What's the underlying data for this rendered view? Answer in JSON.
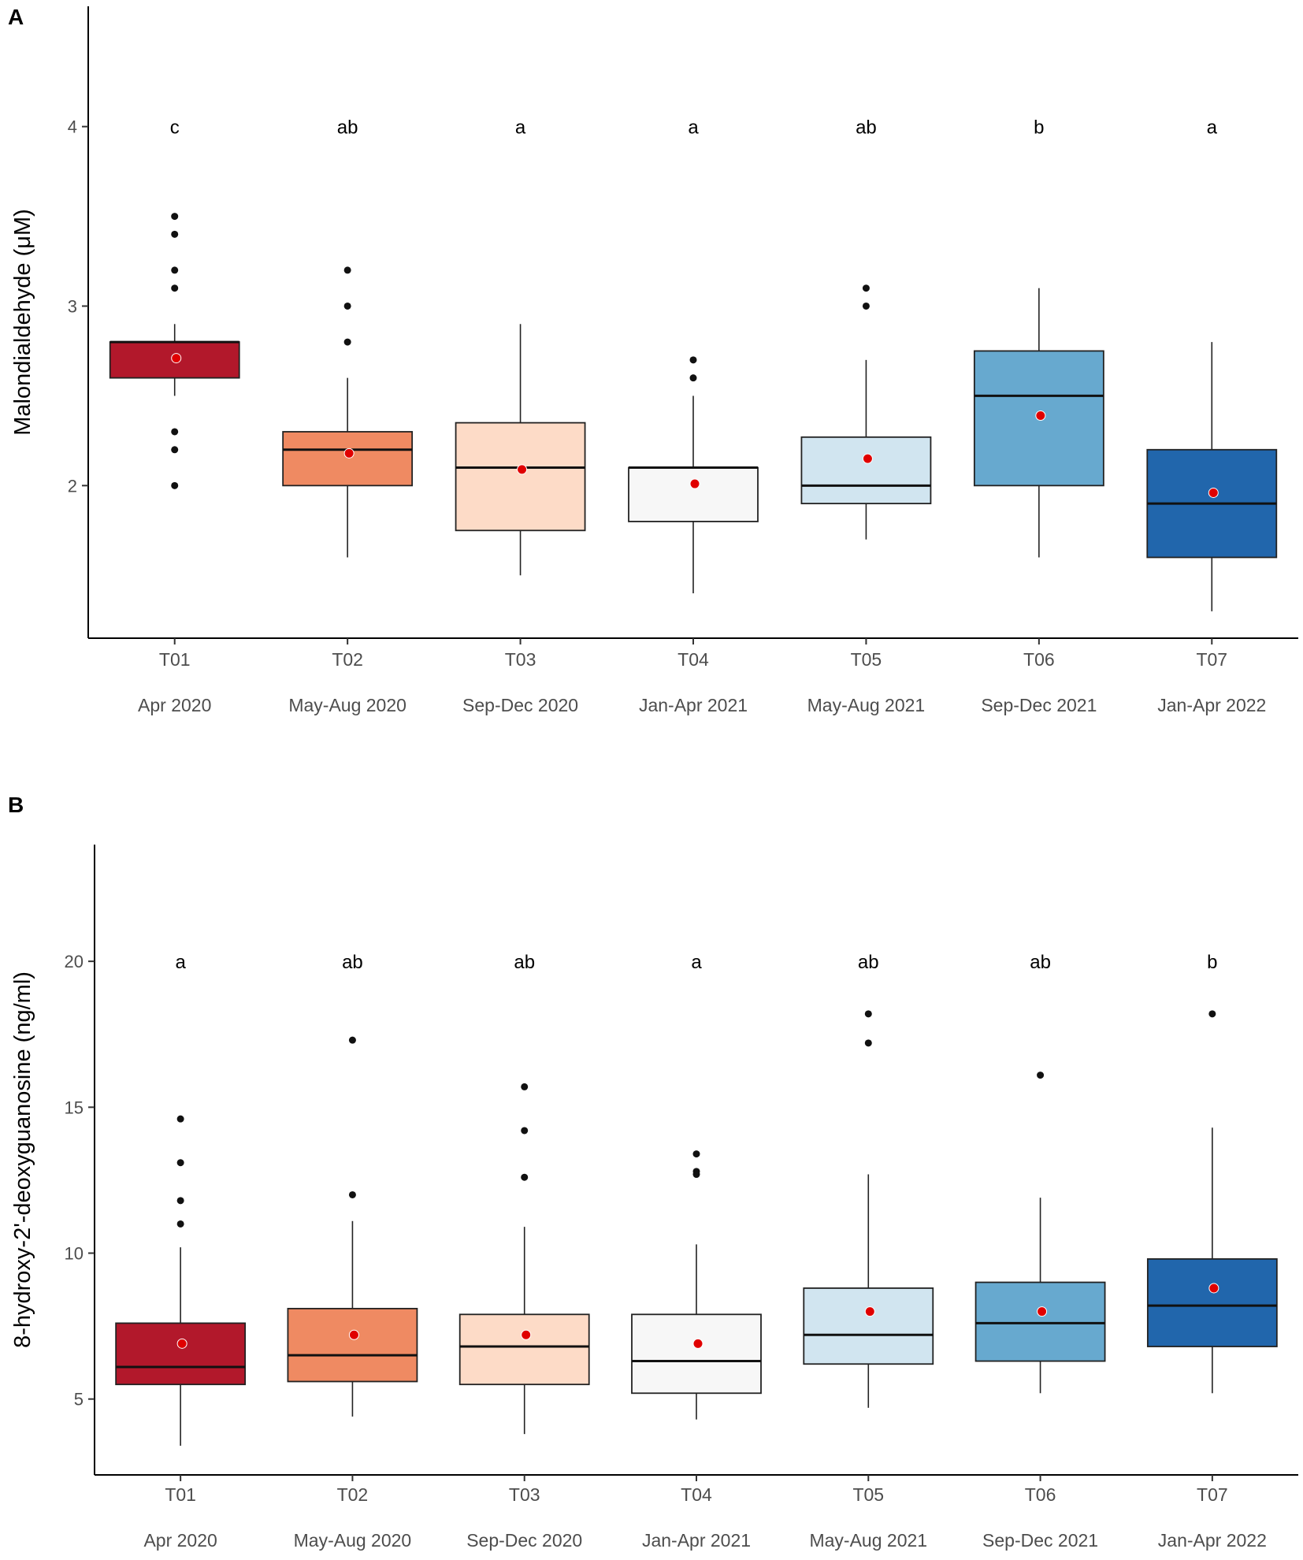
{
  "colors": [
    "#b2182b",
    "#ef8a62",
    "#fddbc7",
    "#f7f7f7",
    "#d1e5f0",
    "#67a9cf",
    "#2166ac"
  ],
  "mean_color": "#e00000",
  "chart_data": [
    {
      "panel": "A",
      "type": "box",
      "ylabel": "Malondialdehyde (μM)",
      "ylim": [
        1.15,
        4.67
      ],
      "yticks": [
        2,
        3,
        4
      ],
      "categories": [
        "T01",
        "T02",
        "T03",
        "T04",
        "T05",
        "T06",
        "T07"
      ],
      "periods": [
        "Apr 2020",
        "May-Aug 2020",
        "Sep-Dec 2020",
        "Jan-Apr 2021",
        "May-Aug 2021",
        "Sep-Dec 2021",
        "Jan-Apr 2022"
      ],
      "letters": [
        "c",
        "ab",
        "a",
        "a",
        "ab",
        "b",
        "a"
      ],
      "letter_y": 4,
      "boxes": [
        {
          "q1": 2.6,
          "median": 2.8,
          "q3": 2.8,
          "whisker_low": 2.5,
          "whisker_high": 2.9,
          "mean": 2.71,
          "outliers": [
            3.5,
            3.4,
            3.2,
            3.1,
            2.3,
            2.2,
            2.0
          ]
        },
        {
          "q1": 2.0,
          "median": 2.2,
          "q3": 2.3,
          "whisker_low": 1.6,
          "whisker_high": 2.6,
          "mean": 2.18,
          "outliers": [
            3.2,
            3.0,
            2.8
          ]
        },
        {
          "q1": 1.75,
          "median": 2.1,
          "q3": 2.35,
          "whisker_low": 1.5,
          "whisker_high": 2.9,
          "mean": 2.09,
          "outliers": []
        },
        {
          "q1": 1.8,
          "median": 2.1,
          "q3": 2.1,
          "whisker_low": 1.4,
          "whisker_high": 2.5,
          "mean": 2.01,
          "outliers": [
            2.7,
            2.6
          ]
        },
        {
          "q1": 1.9,
          "median": 2.0,
          "q3": 2.27,
          "whisker_low": 1.7,
          "whisker_high": 2.7,
          "mean": 2.15,
          "outliers": [
            3.1,
            3.0
          ]
        },
        {
          "q1": 2.0,
          "median": 2.5,
          "q3": 2.75,
          "whisker_low": 1.6,
          "whisker_high": 3.1,
          "mean": 2.39,
          "outliers": []
        },
        {
          "q1": 1.6,
          "median": 1.9,
          "q3": 2.2,
          "whisker_low": 1.3,
          "whisker_high": 2.8,
          "mean": 1.96,
          "outliers": []
        }
      ]
    },
    {
      "panel": "B",
      "type": "box",
      "ylabel": "8-hydroxy-2'-deoxyguanosine (ng/ml)",
      "ylim": [
        2.4,
        24.0
      ],
      "yticks": [
        5,
        10,
        15,
        20
      ],
      "categories": [
        "T01",
        "T02",
        "T03",
        "T04",
        "T05",
        "T06",
        "T07"
      ],
      "periods": [
        "Apr 2020",
        "May-Aug 2020",
        "Sep-Dec 2020",
        "Jan-Apr 2021",
        "May-Aug 2021",
        "Sep-Dec 2021",
        "Jan-Apr 2022"
      ],
      "letters": [
        "a",
        "ab",
        "ab",
        "a",
        "ab",
        "ab",
        "b"
      ],
      "letter_y": 20,
      "boxes": [
        {
          "q1": 5.5,
          "median": 6.1,
          "q3": 7.6,
          "whisker_low": 3.4,
          "whisker_high": 10.2,
          "mean": 6.9,
          "outliers": [
            14.6,
            13.1,
            11.8,
            11.0
          ]
        },
        {
          "q1": 5.6,
          "median": 6.5,
          "q3": 8.1,
          "whisker_low": 4.4,
          "whisker_high": 11.1,
          "mean": 7.2,
          "outliers": [
            17.3,
            12.0
          ]
        },
        {
          "q1": 5.5,
          "median": 6.8,
          "q3": 7.9,
          "whisker_low": 3.8,
          "whisker_high": 10.9,
          "mean": 7.2,
          "outliers": [
            15.7,
            14.2,
            12.6
          ]
        },
        {
          "q1": 5.2,
          "median": 6.3,
          "q3": 7.9,
          "whisker_low": 4.3,
          "whisker_high": 10.3,
          "mean": 6.9,
          "outliers": [
            13.4,
            12.8,
            12.7
          ]
        },
        {
          "q1": 6.2,
          "median": 7.2,
          "q3": 8.8,
          "whisker_low": 4.7,
          "whisker_high": 12.7,
          "mean": 8.0,
          "outliers": [
            18.2,
            17.2
          ]
        },
        {
          "q1": 6.3,
          "median": 7.6,
          "q3": 9.0,
          "whisker_low": 5.2,
          "whisker_high": 11.9,
          "mean": 8.0,
          "outliers": [
            16.1
          ]
        },
        {
          "q1": 6.8,
          "median": 8.2,
          "q3": 9.8,
          "whisker_low": 5.2,
          "whisker_high": 14.3,
          "mean": 8.8,
          "outliers": [
            18.2
          ]
        }
      ]
    }
  ],
  "panels": {
    "a_label": "A",
    "b_label": "B"
  }
}
